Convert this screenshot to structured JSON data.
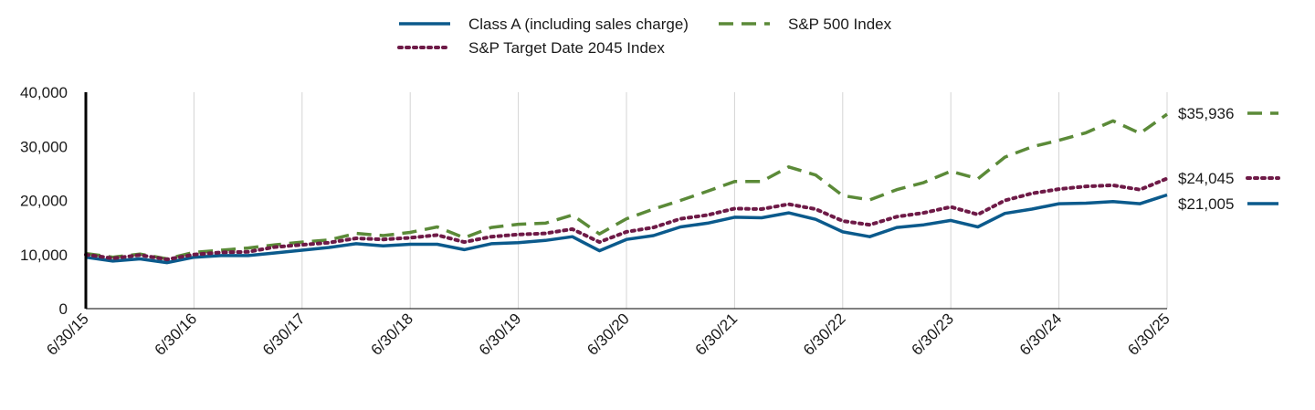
{
  "chart_data": {
    "type": "line",
    "x": [
      "6/30/15",
      "9/30/15",
      "12/31/15",
      "3/31/16",
      "6/30/16",
      "9/30/16",
      "12/31/16",
      "3/31/17",
      "6/30/17",
      "9/30/17",
      "12/31/17",
      "3/31/18",
      "6/30/18",
      "9/30/18",
      "12/31/18",
      "3/31/19",
      "6/30/19",
      "9/30/19",
      "12/31/19",
      "3/31/20",
      "6/30/20",
      "9/30/20",
      "12/31/20",
      "3/31/21",
      "6/30/21",
      "9/30/21",
      "12/31/21",
      "3/31/22",
      "6/30/22",
      "9/30/22",
      "12/31/22",
      "3/31/23",
      "6/30/23",
      "9/30/23",
      "12/31/23",
      "3/31/24",
      "6/30/24",
      "9/30/24",
      "12/31/24",
      "3/31/25",
      "6/30/25"
    ],
    "x_ticks": [
      "6/30/15",
      "6/30/16",
      "6/30/17",
      "6/30/18",
      "6/30/19",
      "6/30/20",
      "6/30/21",
      "6/30/22",
      "6/30/23",
      "6/30/24",
      "6/30/25"
    ],
    "ylim": [
      0,
      40000
    ],
    "y_ticks": [
      0,
      10000,
      20000,
      30000,
      40000
    ],
    "y_tick_labels": [
      "0",
      "10,000",
      "20,000",
      "30,000",
      "40,000"
    ],
    "grid": "vertical",
    "legend_position": "top-center",
    "series": [
      {
        "name": "Class A (including sales charge)",
        "color": "#0b5a8c",
        "style": "solid",
        "end_label": "$21,005",
        "values": [
          9500,
          8800,
          9200,
          8500,
          9500,
          9800,
          9800,
          10300,
          10800,
          11300,
          12000,
          11600,
          11900,
          11900,
          10900,
          12000,
          12200,
          12600,
          13300,
          10700,
          12800,
          13500,
          15100,
          15800,
          16900,
          16800,
          17700,
          16500,
          14200,
          13300,
          15000,
          15500,
          16300,
          15100,
          17600,
          18400,
          19400,
          19500,
          19800,
          19400,
          21005
        ]
      },
      {
        "name": "S&P 500 Index",
        "color": "#5b8a38",
        "style": "dashed",
        "end_label": "$35,936",
        "values": [
          10200,
          9500,
          10100,
          9200,
          10400,
          10800,
          11200,
          11800,
          12300,
          12700,
          13900,
          13500,
          14100,
          15100,
          13100,
          15000,
          15600,
          15800,
          17300,
          13800,
          16600,
          18400,
          20000,
          21700,
          23500,
          23500,
          26200,
          24700,
          20900,
          20100,
          22000,
          23300,
          25400,
          24000,
          28000,
          29900,
          31100,
          32500,
          34700,
          32400,
          35936
        ]
      },
      {
        "name": "S&P Target Date 2045 Index",
        "color": "#6e1a47",
        "style": "dotted",
        "end_label": "$24,045",
        "values": [
          10000,
          9300,
          9900,
          9100,
          10000,
          10400,
          10500,
          11400,
          11800,
          12200,
          13000,
          12800,
          13100,
          13600,
          12300,
          13300,
          13700,
          13900,
          14700,
          12300,
          14200,
          15000,
          16600,
          17300,
          18500,
          18400,
          19300,
          18400,
          16200,
          15500,
          17000,
          17700,
          18800,
          17400,
          20000,
          21300,
          22100,
          22600,
          22800,
          22000,
          24045
        ]
      }
    ]
  }
}
